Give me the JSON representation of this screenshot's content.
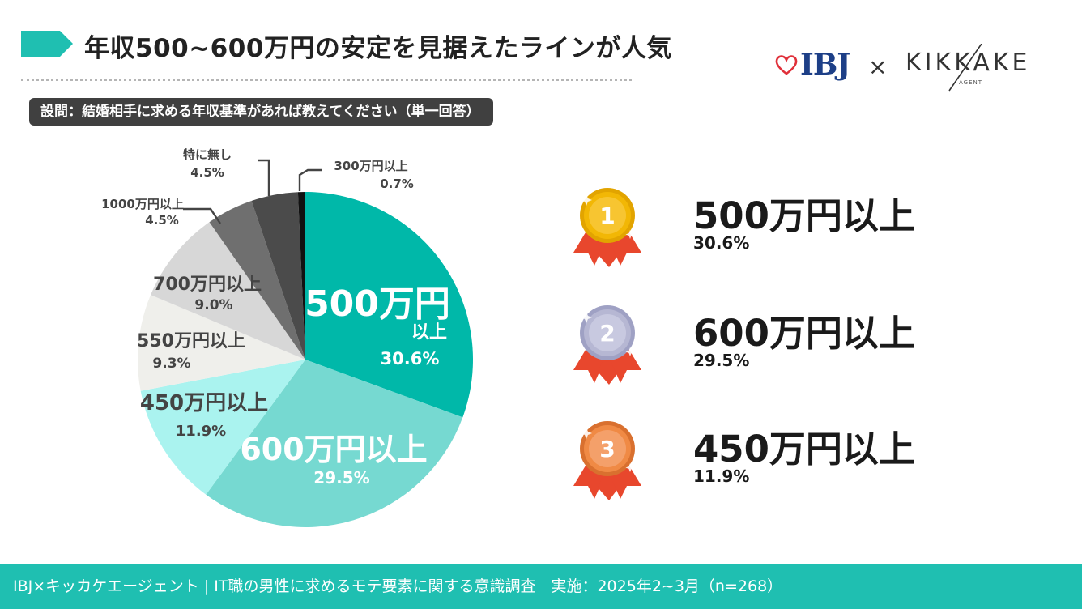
{
  "header": {
    "title": "年収500~600万円の安定を見据えたラインが人気",
    "logo_ibj": "IBJ",
    "logo_cross": "×",
    "logo_kikkake": "KIKKAKE",
    "logo_kikkake_sub": "AGENT"
  },
  "question": "設問：結婚相手に求める年収基準があれば教えてください（単一回答）",
  "chart_data": {
    "type": "pie",
    "slices": [
      {
        "label": "500万円以上",
        "value": 30.6,
        "value_text": "30.6%",
        "color": "#00b8a9"
      },
      {
        "label": "600万円以上",
        "value": 29.5,
        "value_text": "29.5%",
        "color": "#76d9d1"
      },
      {
        "label": "450万円以上",
        "value": 11.9,
        "value_text": "11.9%",
        "color": "#aaf3ef"
      },
      {
        "label": "550万円以上",
        "value": 9.3,
        "value_text": "9.3%",
        "color": "#efefeb"
      },
      {
        "label": "700万円以上",
        "value": 9.0,
        "value_text": "9.0%",
        "color": "#d7d7d7"
      },
      {
        "label": "1000万円以上",
        "value": 4.5,
        "value_text": "4.5%",
        "color": "#6f6f6f"
      },
      {
        "label": "特に無し",
        "value": 4.5,
        "value_text": "4.5%",
        "color": "#4b4b4b"
      },
      {
        "label": "300万円以上",
        "value": 0.7,
        "value_text": "0.7%",
        "color": "#111111"
      }
    ]
  },
  "ranking": [
    {
      "rank": "1",
      "label": "500万円以上",
      "value": "30.6%",
      "medal": "gold"
    },
    {
      "rank": "2",
      "label": "600万円以上",
      "value": "29.5%",
      "medal": "silver"
    },
    {
      "rank": "3",
      "label": "450万円以上",
      "value": "11.9%",
      "medal": "bronze"
    }
  ],
  "footer": "IBJ×キッカケエージェント | IT職の男性に求めるモテ要素に関する意識調査　実施：2025年2~3月（n=268）",
  "colors": {
    "accent": "#1fbfb1",
    "question_bg": "#404040",
    "gold": "#f2b705",
    "silver": "#b6b7d3",
    "bronze": "#f08a45",
    "ribbon": "#e8472d"
  }
}
